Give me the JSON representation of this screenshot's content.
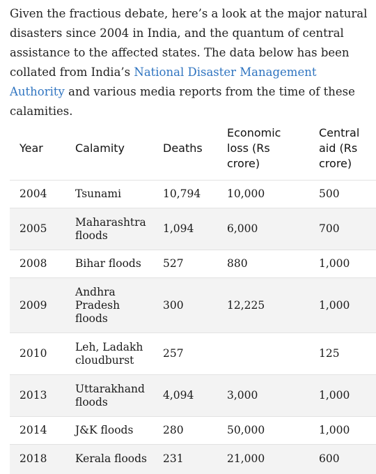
{
  "intro": {
    "before_link": "Given the fractious debate, here’s a look at the major natural disasters since 2004 in India, and the quantum of central assistance to the affected states. The data below has been collated from India’s ",
    "link_text": "National Disaster Management Authority",
    "after_link": " and various media reports from the time of these calamities."
  },
  "table": {
    "headers": [
      "Year",
      "Calamity",
      "Deaths",
      "Economic loss (Rs crore)",
      "Central aid (Rs crore)"
    ],
    "rows": [
      {
        "year": "2004",
        "calamity": "Tsunami",
        "deaths": "10,794",
        "loss": "10,000",
        "aid": "500"
      },
      {
        "year": "2005",
        "calamity": "Maharashtra floods",
        "deaths": "1,094",
        "loss": "6,000",
        "aid": "700"
      },
      {
        "year": "2008",
        "calamity": "Bihar floods",
        "deaths": "527",
        "loss": "880",
        "aid": "1,000"
      },
      {
        "year": "2009",
        "calamity": "Andhra Pradesh floods",
        "deaths": "300",
        "loss": "12,225",
        "aid": "1,000"
      },
      {
        "year": "2010",
        "calamity": "Leh, Ladakh cloudburst",
        "deaths": "257",
        "loss": "",
        "aid": "125"
      },
      {
        "year": "2013",
        "calamity": "Uttarakhand floods",
        "deaths": "4,094",
        "loss": "3,000",
        "aid": "1,000"
      },
      {
        "year": "2014",
        "calamity": "J&K floods",
        "deaths": "280",
        "loss": "50,000",
        "aid": "1,000"
      },
      {
        "year": "2018",
        "calamity": "Kerala floods",
        "deaths": "231",
        "loss": "21,000",
        "aid": "600"
      }
    ]
  }
}
